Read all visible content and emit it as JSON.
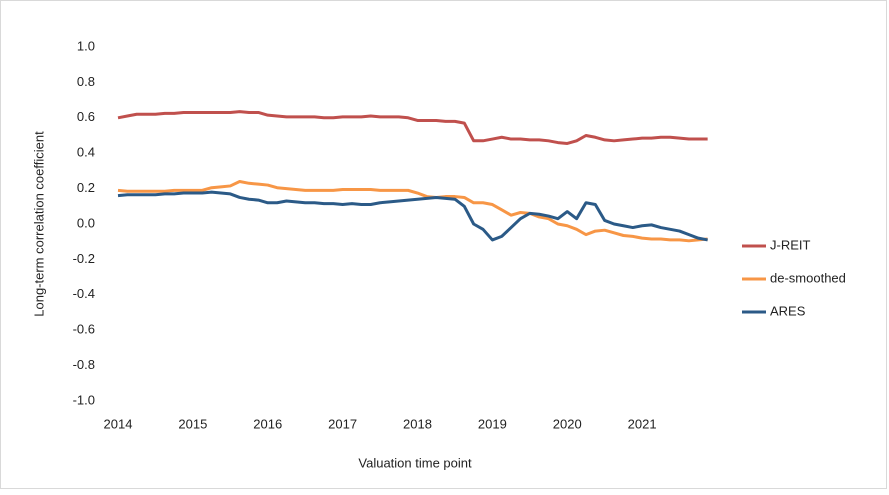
{
  "chart_data": {
    "type": "line",
    "x_label": "Valuation time point",
    "y_label": "Long-term correlation coefficient",
    "x": [
      2014,
      2014.125,
      2014.25,
      2014.375,
      2014.5,
      2014.625,
      2014.75,
      2014.875,
      2015,
      2015.125,
      2015.25,
      2015.375,
      2015.5,
      2015.625,
      2015.75,
      2015.875,
      2016,
      2016.125,
      2016.25,
      2016.375,
      2016.5,
      2016.625,
      2016.75,
      2016.875,
      2017,
      2017.125,
      2017.25,
      2017.375,
      2017.5,
      2017.625,
      2017.75,
      2017.875,
      2018,
      2018.125,
      2018.25,
      2018.375,
      2018.5,
      2018.625,
      2018.75,
      2018.875,
      2019,
      2019.125,
      2019.25,
      2019.375,
      2019.5,
      2019.625,
      2019.75,
      2019.875,
      2020,
      2020.125,
      2020.25,
      2020.375,
      2020.5,
      2020.625,
      2020.75,
      2020.875,
      2021,
      2021.125,
      2021.25,
      2021.375,
      2021.5,
      2021.625,
      2021.75,
      2021.875
    ],
    "series": [
      {
        "name": "J-REIT",
        "color": "#c0504d",
        "values": [
          0.6,
          0.61,
          0.62,
          0.62,
          0.62,
          0.625,
          0.625,
          0.63,
          0.63,
          0.63,
          0.63,
          0.63,
          0.63,
          0.635,
          0.63,
          0.63,
          0.615,
          0.61,
          0.605,
          0.605,
          0.605,
          0.605,
          0.6,
          0.6,
          0.605,
          0.605,
          0.605,
          0.61,
          0.605,
          0.605,
          0.605,
          0.6,
          0.585,
          0.585,
          0.585,
          0.58,
          0.58,
          0.57,
          0.47,
          0.47,
          0.48,
          0.49,
          0.48,
          0.48,
          0.475,
          0.475,
          0.47,
          0.46,
          0.455,
          0.47,
          0.5,
          0.49,
          0.475,
          0.47,
          0.475,
          0.48,
          0.485,
          0.485,
          0.49,
          0.49,
          0.485,
          0.48,
          0.48,
          0.48
        ]
      },
      {
        "name": "de-smoothed",
        "color": "#f79646",
        "values": [
          0.19,
          0.185,
          0.185,
          0.185,
          0.185,
          0.185,
          0.19,
          0.19,
          0.19,
          0.19,
          0.205,
          0.21,
          0.215,
          0.24,
          0.23,
          0.225,
          0.22,
          0.205,
          0.2,
          0.195,
          0.19,
          0.19,
          0.19,
          0.19,
          0.195,
          0.195,
          0.195,
          0.195,
          0.19,
          0.19,
          0.19,
          0.19,
          0.175,
          0.155,
          0.15,
          0.155,
          0.155,
          0.15,
          0.12,
          0.12,
          0.11,
          0.08,
          0.05,
          0.065,
          0.06,
          0.04,
          0.03,
          0.0,
          -0.01,
          -0.03,
          -0.06,
          -0.04,
          -0.035,
          -0.05,
          -0.065,
          -0.07,
          -0.08,
          -0.085,
          -0.085,
          -0.09,
          -0.09,
          -0.095,
          -0.09,
          -0.085
        ]
      },
      {
        "name": "ARES",
        "color": "#2b5a87",
        "values": [
          0.16,
          0.165,
          0.165,
          0.165,
          0.165,
          0.17,
          0.17,
          0.175,
          0.175,
          0.175,
          0.18,
          0.175,
          0.17,
          0.15,
          0.14,
          0.135,
          0.12,
          0.12,
          0.13,
          0.125,
          0.12,
          0.12,
          0.115,
          0.115,
          0.11,
          0.115,
          0.11,
          0.11,
          0.12,
          0.125,
          0.13,
          0.135,
          0.14,
          0.145,
          0.15,
          0.145,
          0.14,
          0.1,
          0.0,
          -0.03,
          -0.09,
          -0.07,
          -0.02,
          0.03,
          0.06,
          0.055,
          0.045,
          0.03,
          0.07,
          0.03,
          0.12,
          0.11,
          0.02,
          0.0,
          -0.01,
          -0.02,
          -0.01,
          -0.005,
          -0.02,
          -0.03,
          -0.04,
          -0.06,
          -0.08,
          -0.09
        ]
      }
    ],
    "xlim": [
      2014,
      2022
    ],
    "xticks": [
      2014,
      2015,
      2016,
      2017,
      2018,
      2019,
      2020,
      2021
    ],
    "ylim": [
      -1,
      1
    ],
    "yticks": [
      {
        "value": -1,
        "label": "-1.0"
      },
      -0.8,
      -0.6,
      -0.4,
      -0.2,
      {
        "value": 0,
        "label": "0.0"
      },
      0.2,
      0.4,
      0.6,
      0.8,
      {
        "value": 1,
        "label": "1.0"
      }
    ],
    "grid": false,
    "legend": "right"
  }
}
